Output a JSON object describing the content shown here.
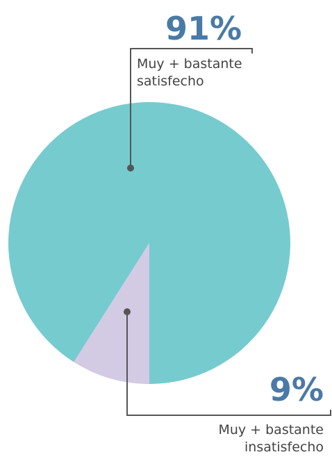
{
  "chart_data": {
    "type": "pie",
    "categories": [
      "Muy + bastante satisfecho",
      "Muy + bastante insatisfecho"
    ],
    "values": [
      91,
      9
    ],
    "value_labels": [
      "91%",
      "9%"
    ],
    "colors": [
      "#76cbcf",
      "#d3cae3"
    ]
  }
}
